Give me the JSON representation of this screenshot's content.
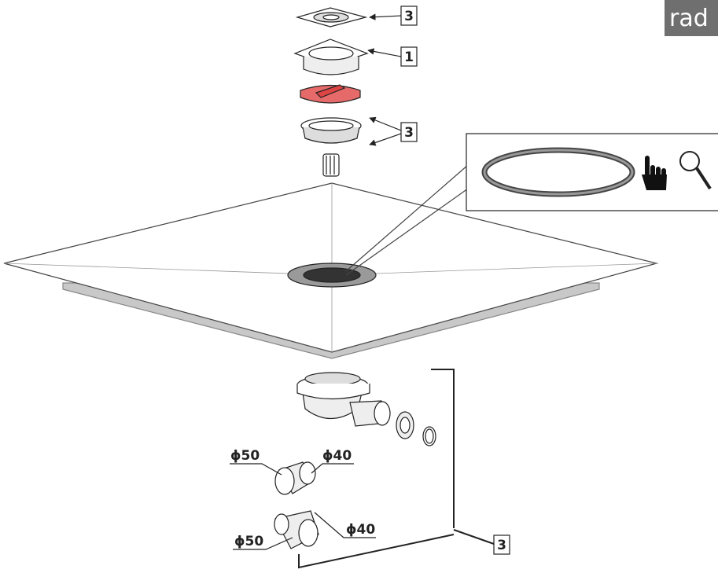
{
  "logo": "rad",
  "callouts": [
    {
      "label": "3"
    },
    {
      "label": "1"
    },
    {
      "label": "3"
    },
    {
      "label": "3"
    }
  ],
  "dimensions": [
    {
      "label": "ϕ50"
    },
    {
      "label": "ϕ40"
    },
    {
      "label": "ϕ40"
    },
    {
      "label": "ϕ50"
    }
  ]
}
